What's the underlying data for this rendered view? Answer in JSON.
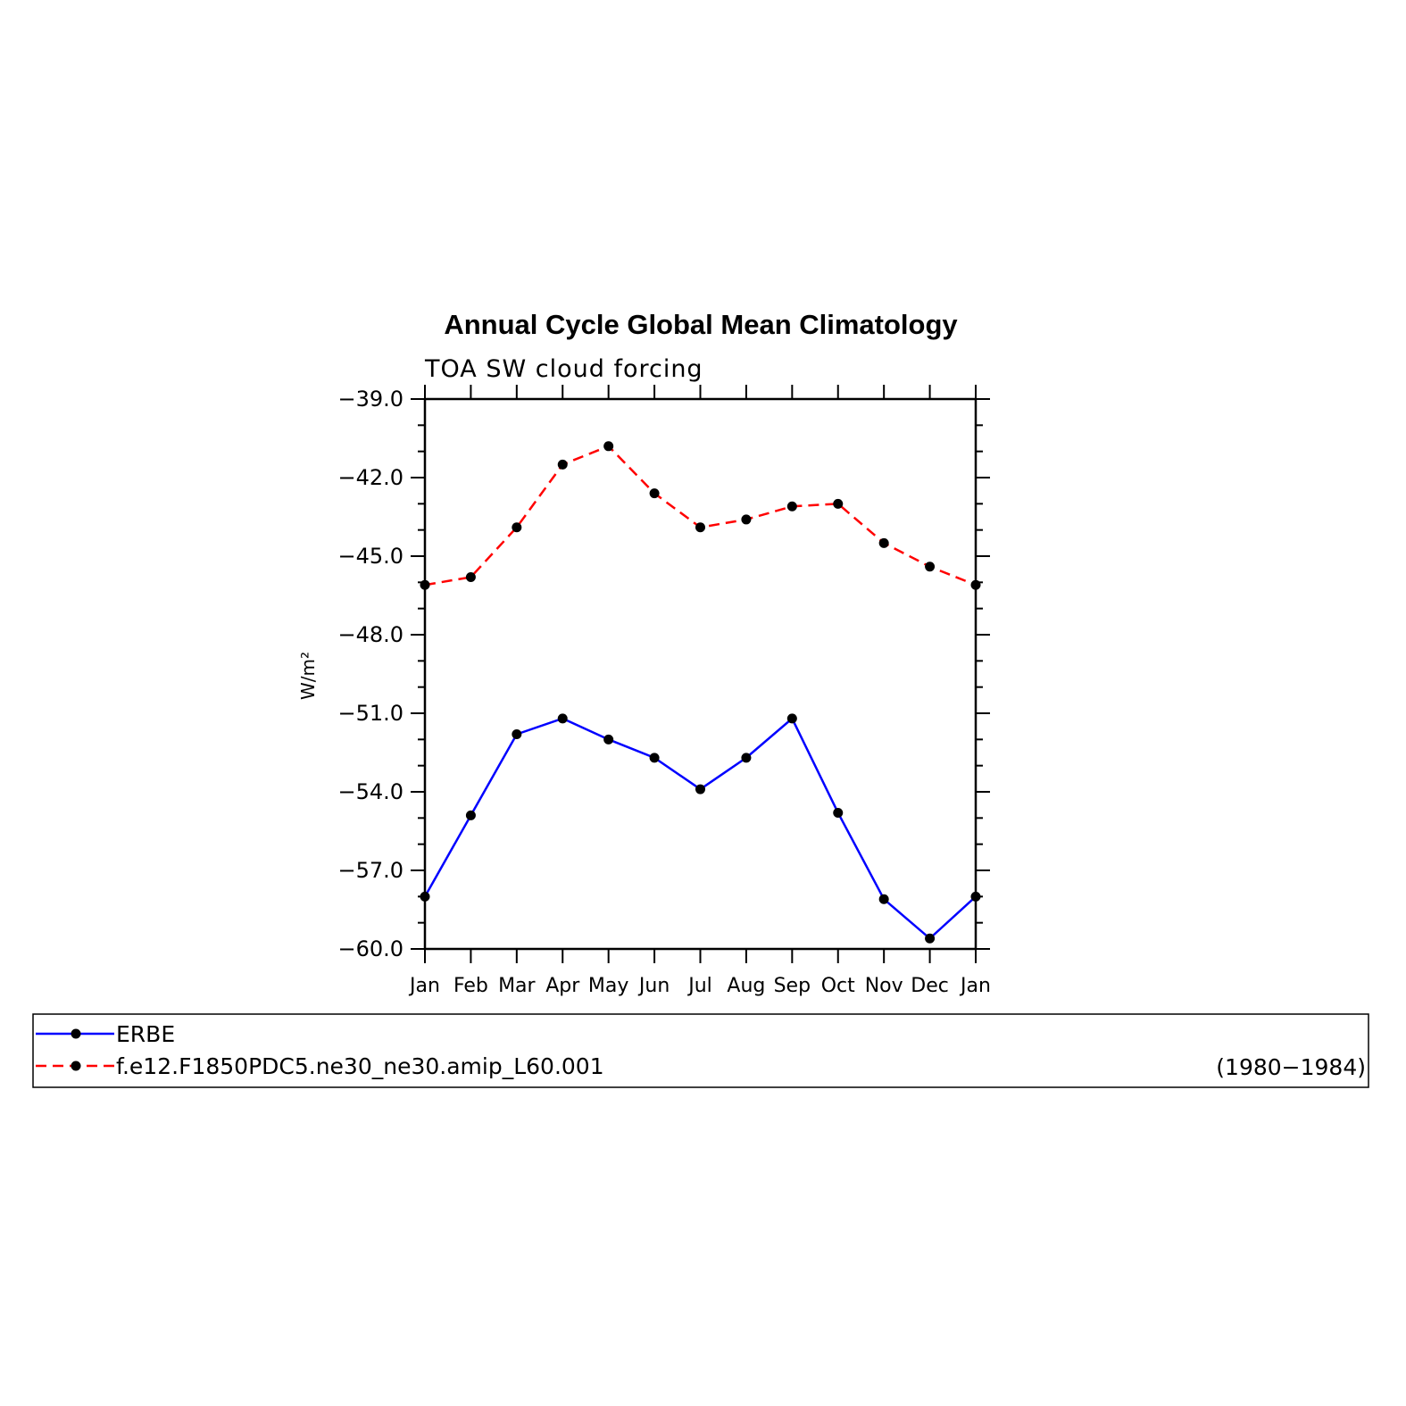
{
  "chart_data": {
    "type": "line",
    "title": "Annual Cycle Global Mean Climatology",
    "subtitle": "TOA SW cloud forcing",
    "ylabel": "W/m²",
    "xlabel": "",
    "categories": [
      "Jan",
      "Feb",
      "Mar",
      "Apr",
      "May",
      "Jun",
      "Jul",
      "Aug",
      "Sep",
      "Oct",
      "Nov",
      "Dec",
      "Jan"
    ],
    "ylim": [
      -60.0,
      -39.0
    ],
    "yticks": [
      -60.0,
      -57.0,
      -54.0,
      -51.0,
      -48.0,
      -45.0,
      -42.0,
      -39.0
    ],
    "ytick_labels": [
      "−60.0",
      "−57.0",
      "−54.0",
      "−51.0",
      "−48.0",
      "−45.0",
      "−42.0",
      "−39.0"
    ],
    "grid": false,
    "legend_position": "bottom",
    "legend_note": "(1980−1984)",
    "series": [
      {
        "name": "ERBE",
        "color": "#0000ff",
        "style": "solid",
        "marker": "dot",
        "values": [
          -58.0,
          -54.9,
          -51.8,
          -51.2,
          -52.0,
          -52.7,
          -53.9,
          -52.7,
          -51.2,
          -54.8,
          -58.1,
          -59.6,
          -58.0
        ]
      },
      {
        "name": "f.e12.F1850PDC5.ne30_ne30.amip_L60.001",
        "color": "#ff0000",
        "style": "dashed",
        "marker": "dot",
        "values": [
          -46.1,
          -45.8,
          -43.9,
          -41.5,
          -40.8,
          -42.6,
          -43.9,
          -43.6,
          -43.1,
          -43.0,
          -44.5,
          -45.4,
          -46.1
        ]
      }
    ]
  }
}
